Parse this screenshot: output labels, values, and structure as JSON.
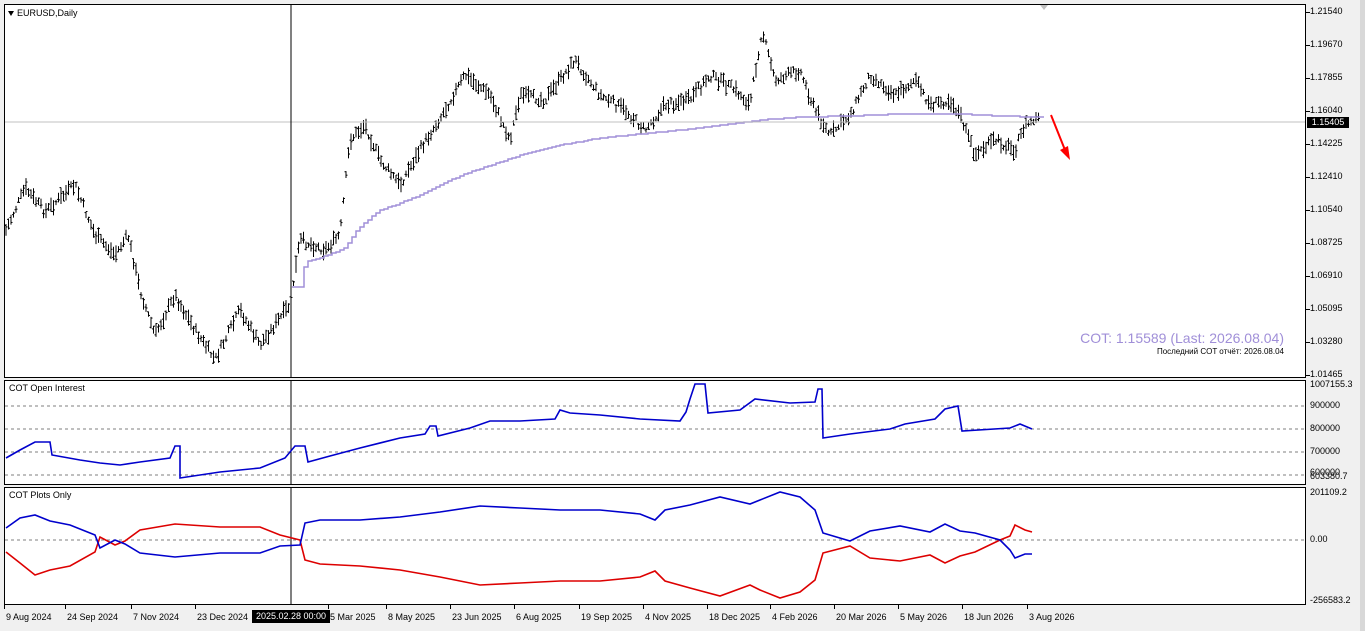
{
  "main": {
    "symbol_label": "EURUSD,Daily",
    "price_scale": [
      "1.21540",
      "1.19670",
      "1.17855",
      "1.16040",
      "1.14225",
      "1.12410",
      "1.10540",
      "1.08725",
      "1.06910",
      "1.05095",
      "1.03280",
      "1.01465"
    ],
    "current_price": "1.15405",
    "cot_value_label": "COT: 1.15589 (Last: 2026.08.04)",
    "cot_note_label": "Последний COT отчёт: 2026.08.04",
    "ma_color": "#a08fd8",
    "arrow_color": "#ff0000"
  },
  "open_interest": {
    "title": "COT Open Interest",
    "scale": [
      "1007155.3",
      "900000",
      "800000",
      "700000",
      "603380.7"
    ],
    "scale_overlap": "600000",
    "line_color": "#0000cc"
  },
  "plots": {
    "title": "COT Plots Only",
    "scale": [
      "201109.2",
      "0.00",
      "-256583.2"
    ],
    "long_color": "#0000cc",
    "short_color": "#dd0000"
  },
  "date_axis": {
    "labels": [
      "9 Aug 2024",
      "24 Sep 2024",
      "7 Nov 2024",
      "23 Dec 2024",
      "5 Mar 2025",
      "8 May 2025",
      "23 Jun 2025",
      "6 Aug 2025",
      "19 Sep 2025",
      "4 Nov 2025",
      "18 Dec 2025",
      "4 Feb 2026",
      "20 Mar 2026",
      "5 May 2026",
      "18 Jun 2026",
      "3 Aug 2026"
    ],
    "crosshair_label": "2025.02.28 00:00"
  }
}
